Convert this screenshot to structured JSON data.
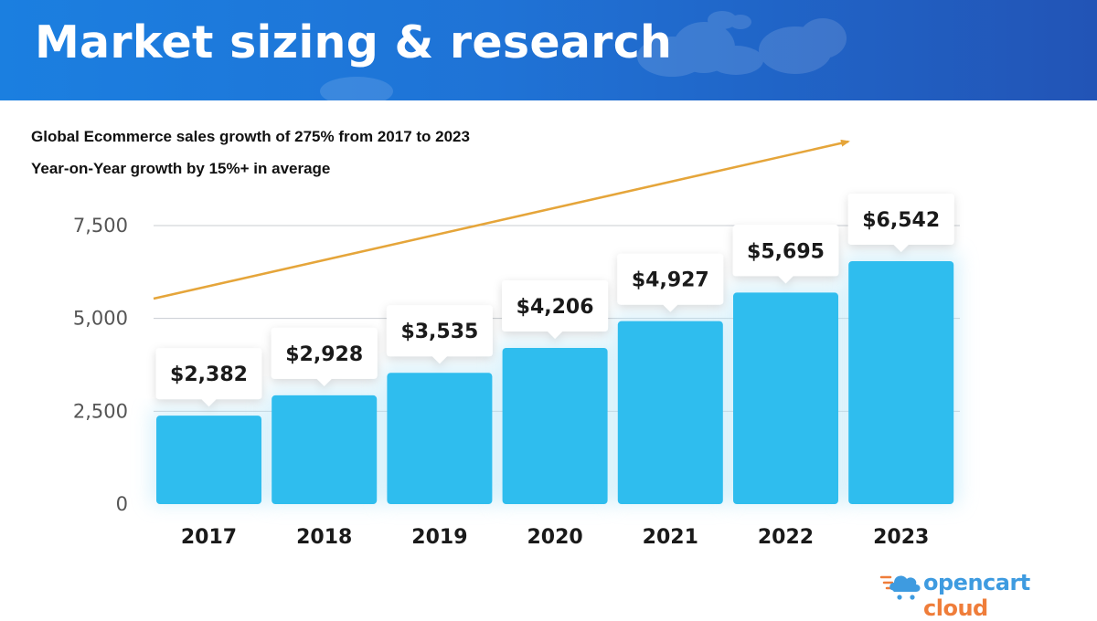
{
  "header": {
    "title": "Market sizing & research"
  },
  "subtitles": {
    "line1": "Global Ecommerce sales growth of 275% from 2017 to 2023",
    "line2": "Year-on-Year growth by 15%+ in average"
  },
  "colors": {
    "banner_start": "#1b7fe0",
    "banner_end": "#2254b6",
    "bar": "#2fbdee",
    "trend_arrow": "#e5a53a",
    "grid": "#c8ccd2"
  },
  "chart_data": {
    "type": "bar",
    "categories": [
      "2017",
      "2018",
      "2019",
      "2020",
      "2021",
      "2022",
      "2023"
    ],
    "values": [
      2382,
      2928,
      3535,
      4206,
      4927,
      5695,
      6542
    ],
    "data_labels": [
      "$2,382",
      "$2,928",
      "$3,535",
      "$4,206",
      "$4,927",
      "$5,695",
      "$6,542"
    ],
    "y_ticks": [
      0,
      2500,
      5000,
      7500
    ],
    "y_tick_labels": [
      "0",
      "2,500",
      "5,000",
      "7,500"
    ],
    "ylim": [
      0,
      7500
    ],
    "grid": true,
    "legend": "none",
    "annotation": "upward trend arrow"
  },
  "logo": {
    "word1": "opencart",
    "word2": "cloud"
  }
}
